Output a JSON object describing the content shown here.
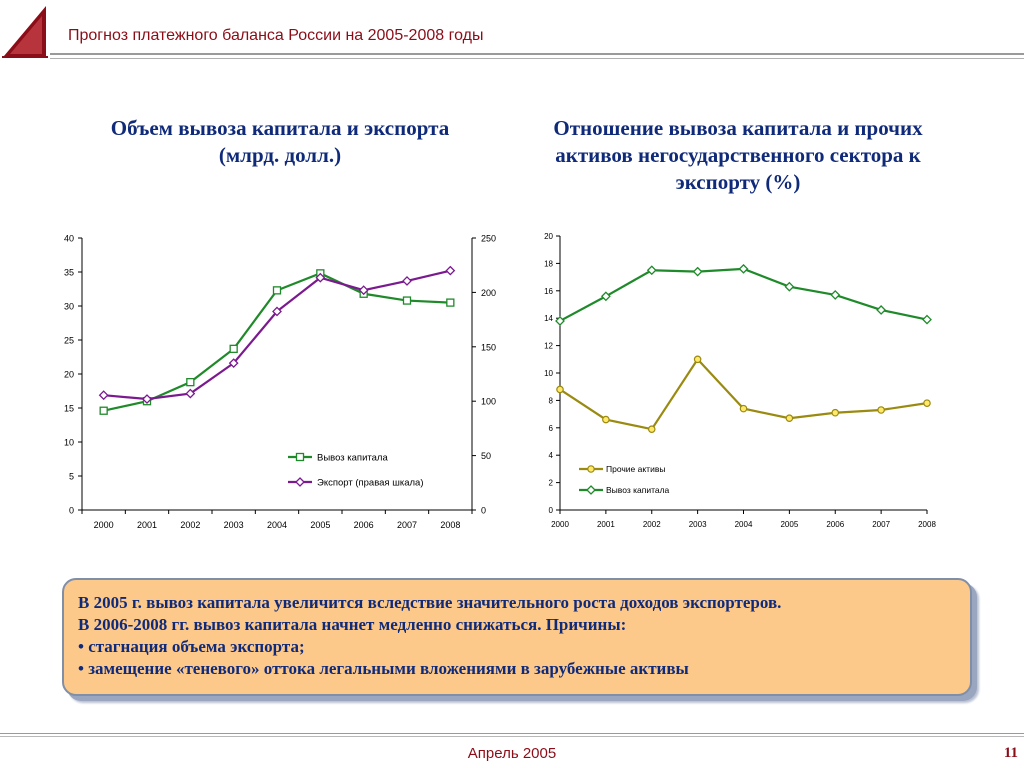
{
  "header": {
    "title": "Прогноз платежного баланса России на 2005-2008 годы"
  },
  "logo": {
    "icon": "triangle-logo-icon",
    "color": "#8b0d18"
  },
  "charts": {
    "left_heading": [
      "Объем вывоза капитала и экспорта",
      "(млрд. долл.)"
    ],
    "right_heading": [
      "Отношение вывоза капитала и прочих",
      "активов негосударственного сектора к",
      "экспорту (%)"
    ]
  },
  "chart_data": [
    {
      "type": "line",
      "title": "Объем вывоза капитала и экспорта (млрд. долл.)",
      "categories": [
        "2000",
        "2001",
        "2002",
        "2003",
        "2004",
        "2005",
        "2006",
        "2007",
        "2008"
      ],
      "ylim": [
        0,
        40
      ],
      "yticks": [
        "0",
        "5",
        "10",
        "15",
        "20",
        "25",
        "30",
        "35",
        "40"
      ],
      "y2lim": [
        0,
        250
      ],
      "y2ticks": [
        "0",
        "50",
        "100",
        "150",
        "200",
        "250"
      ],
      "legend_position": "bottom-right",
      "series": [
        {
          "name": "Вывоз капитала",
          "axis": "left",
          "color": "#1f8a2a",
          "marker": "square",
          "values": [
            14.6,
            16.0,
            18.8,
            23.7,
            32.3,
            34.8,
            31.8,
            30.8,
            30.5
          ]
        },
        {
          "name": "Экспорт (правая шкала)",
          "axis": "right",
          "color": "#7b1a8f",
          "marker": "diamond",
          "values": [
            105.5,
            102.0,
            107.0,
            135.0,
            182.5,
            213.5,
            202.0,
            210.5,
            220.0
          ]
        }
      ]
    },
    {
      "type": "line",
      "title": "Отношение вывоза капитала и прочих активов негосударственного сектора к экспорту (%)",
      "categories": [
        "2000",
        "2001",
        "2002",
        "2003",
        "2004",
        "2005",
        "2006",
        "2007",
        "2008"
      ],
      "ylim": [
        0,
        20
      ],
      "yticks": [
        "0",
        "2",
        "4",
        "6",
        "8",
        "10",
        "12",
        "14",
        "16",
        "18",
        "20"
      ],
      "legend_position": "bottom-left",
      "series": [
        {
          "name": "Прочие активы",
          "color": "#9a8a10",
          "marker": "circle",
          "values": [
            8.8,
            6.6,
            5.9,
            11.0,
            7.4,
            6.7,
            7.1,
            7.3,
            7.8
          ]
        },
        {
          "name": "Вывоз капитала",
          "color": "#1f8a2a",
          "marker": "diamond",
          "values": [
            13.8,
            15.6,
            17.5,
            17.4,
            17.6,
            16.3,
            15.7,
            14.6,
            13.9
          ]
        }
      ]
    }
  ],
  "note": {
    "lines": [
      "В 2005 г. вывоз капитала увеличится вследствие значительного роста доходов экспортеров.",
      "В 2006-2008 гг. вывоз капитала начнет медленно снижаться. Причины:",
      "• стагнация объема экспорта;",
      "• замещение «теневого» оттока легальными вложениями в зарубежные активы"
    ]
  },
  "footer": {
    "date": "Апрель 2005",
    "page": "11"
  }
}
